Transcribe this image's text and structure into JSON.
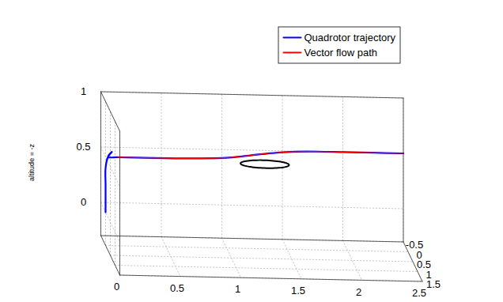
{
  "chart_data": {
    "type": "line3d",
    "zlabel": "altitude = -z",
    "xlim": [
      0,
      2.5
    ],
    "ylim": [
      -0.5,
      1.5
    ],
    "zlim": [
      -0.3,
      1
    ],
    "xticks": [
      0,
      0.5,
      1,
      1.5,
      2,
      2.5
    ],
    "yticks": [
      -0.5,
      0,
      0.5,
      1,
      1.5
    ],
    "zticks": [
      0,
      0.5,
      1
    ],
    "grid": true,
    "legend": "upper right",
    "series": [
      {
        "name": "Quadrotor trajectory",
        "color": "#0000ff",
        "x": [
          0,
          0,
          0,
          0,
          0.02,
          0.05,
          0.02,
          0.1,
          0.25,
          0.5,
          0.75,
          1,
          1.15,
          1.3,
          1.45,
          1.6,
          1.8,
          2,
          2.25,
          2.5
        ],
        "y": [
          0,
          0,
          0,
          0,
          0,
          0.02,
          0,
          0,
          0,
          0,
          -0.02,
          -0.08,
          -0.18,
          -0.3,
          -0.4,
          -0.47,
          -0.5,
          -0.5,
          -0.5,
          -0.5
        ],
        "z": [
          0,
          0.1,
          0.25,
          0.4,
          0.5,
          0.55,
          0.5,
          0.5,
          0.5,
          0.5,
          0.5,
          0.5,
          0.5,
          0.5,
          0.5,
          0.5,
          0.5,
          0.5,
          0.5,
          0.5
        ]
      },
      {
        "name": "Vector flow path",
        "color": "#ff0000",
        "x": [
          0.1,
          0.25,
          0.5,
          0.75,
          1,
          1.15,
          1.3,
          1.45,
          1.6,
          1.8,
          2,
          2.25,
          2.5
        ],
        "y": [
          0,
          0,
          0,
          -0.02,
          -0.08,
          -0.18,
          -0.3,
          -0.4,
          -0.47,
          -0.5,
          -0.5,
          -0.5,
          -0.5
        ],
        "z": [
          0.5,
          0.5,
          0.5,
          0.5,
          0.5,
          0.5,
          0.5,
          0.5,
          0.5,
          0.5,
          0.5,
          0.5,
          0.5
        ]
      }
    ],
    "circles": [
      {
        "x": 1.3,
        "y": 0.2,
        "z": 0.5,
        "r": 0.2,
        "color": "#000000"
      }
    ]
  }
}
